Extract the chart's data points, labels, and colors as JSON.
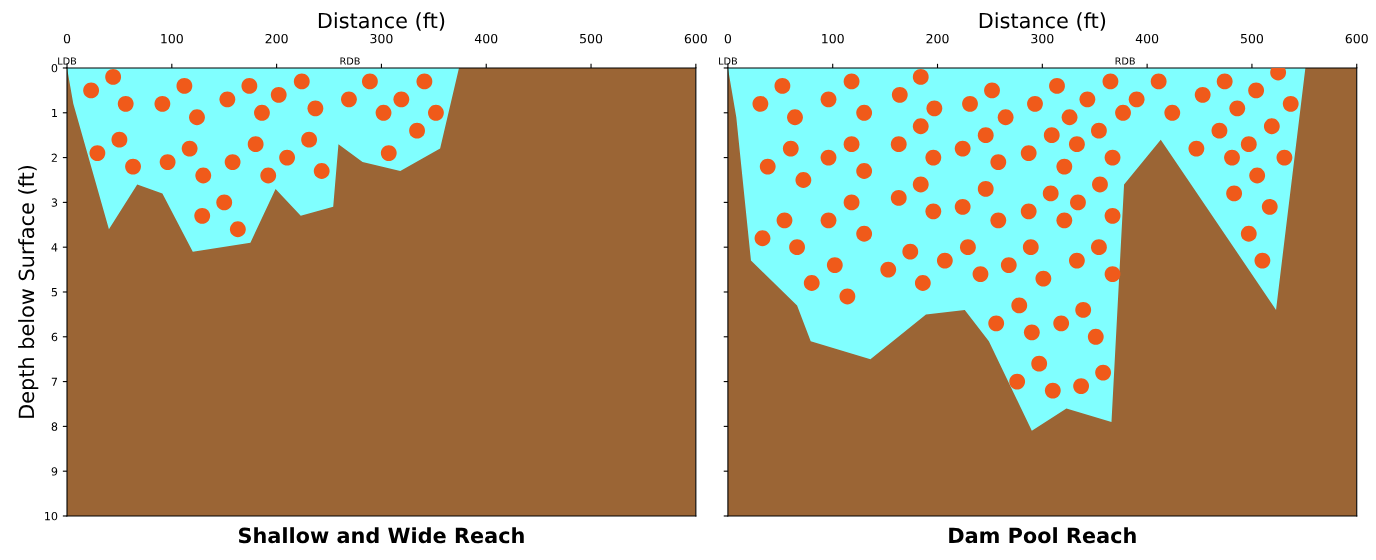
{
  "chart_data": [
    {
      "type": "area",
      "title": "Shallow and Wide Reach",
      "xlabel": "Distance (ft)",
      "ylabel": "Depth below Surface (ft)",
      "xlim": [
        0,
        600
      ],
      "xticks": [
        0,
        100,
        200,
        300,
        400,
        500,
        600
      ],
      "ylim": [
        10,
        0
      ],
      "yticks": [
        0,
        1,
        2,
        3,
        4,
        5,
        6,
        7,
        8,
        9,
        10
      ],
      "grid": false,
      "bands": [
        {
          "axis": "y",
          "from": 0,
          "to": 10,
          "color": "#9b6535"
        }
      ],
      "legend": false,
      "annotations": [
        {
          "text": "LDB",
          "x": 0,
          "y": 0
        },
        {
          "text": "RDB",
          "x": 270,
          "y": 0
        }
      ],
      "series": [
        {
          "color": "#80ffff",
          "x": [
            0,
            6,
            40,
            67,
            91,
            120,
            175,
            199,
            223,
            254,
            259,
            282,
            318,
            356,
            374
          ],
          "values": [
            0,
            0.8,
            3.6,
            2.6,
            2.8,
            4.1,
            3.9,
            2.7,
            3.3,
            3.1,
            1.7,
            2.1,
            2.3,
            1.8,
            0
          ]
        },
        {
          "type": "scatter",
          "color": "#f05a1a",
          "marker": "circle",
          "x": [
            23,
            44,
            56,
            50,
            29,
            63,
            91,
            112,
            124,
            96,
            117,
            130,
            150,
            129,
            163,
            153,
            174,
            186,
            158,
            180,
            192,
            202,
            224,
            237,
            210,
            231,
            243,
            269,
            289,
            302,
            319,
            341,
            352,
            334,
            307
          ],
          "values": [
            0.5,
            0.2,
            0.8,
            1.6,
            1.9,
            2.2,
            0.8,
            0.4,
            1.1,
            2.1,
            1.8,
            2.4,
            3.0,
            3.3,
            3.6,
            0.7,
            0.4,
            1.0,
            2.1,
            1.7,
            2.4,
            0.6,
            0.3,
            0.9,
            2.0,
            1.6,
            2.3,
            0.7,
            0.3,
            1.0,
            0.7,
            0.3,
            1.0,
            1.4,
            1.9
          ]
        }
      ]
    },
    {
      "type": "area",
      "title": "Dam Pool Reach",
      "xlabel": "Distance (ft)",
      "tick_labels": "x",
      "xlim": [
        0,
        600
      ],
      "xticks": [
        0,
        100,
        200,
        300,
        400,
        500,
        600
      ],
      "ylim": [
        10,
        0
      ],
      "yticks": [
        0,
        1,
        2,
        3,
        4,
        5,
        6,
        7,
        8,
        9,
        10
      ],
      "grid": false,
      "bands": [
        {
          "axis": "y",
          "from": 0,
          "to": 10,
          "color": "#9b6535"
        }
      ],
      "legend": false,
      "annotations": [
        {
          "text": "LDB",
          "x": 0,
          "y": 0
        },
        {
          "text": "RDB",
          "x": 379,
          "y": 0
        }
      ],
      "series": [
        {
          "color": "#80ffff",
          "x": [
            0,
            8,
            22,
            66,
            79,
            136,
            189,
            226,
            249,
            290,
            323,
            366,
            378,
            413,
            523,
            551
          ],
          "values": [
            0,
            1.1,
            4.3,
            5.3,
            6.1,
            6.5,
            5.5,
            5.4,
            6.1,
            8.1,
            7.6,
            7.9,
            2.6,
            1.6,
            5.4,
            0
          ]
        },
        {
          "type": "scatter",
          "color": "#f05a1a",
          "marker": "circle",
          "x": [
            31,
            52,
            64,
            60,
            38,
            72,
            54,
            33,
            66,
            80,
            102,
            114,
            96,
            130,
            118,
            130,
            96,
            118,
            130,
            96,
            118,
            164,
            184,
            197,
            184,
            163,
            196,
            184,
            163,
            196,
            174,
            153,
            186,
            207,
            229,
            241,
            224,
            246,
            258,
            224,
            246,
            258,
            231,
            252,
            265,
            293,
            314,
            326,
            309,
            287,
            321,
            333,
            354,
            343,
            365,
            377,
            390,
            411,
            424,
            367,
            355,
            308,
            334,
            287,
            321,
            367,
            354,
            289,
            268,
            301,
            333,
            367,
            278,
            339,
            256,
            290,
            318,
            351,
            297,
            276,
            310,
            337,
            358,
            453,
            474,
            504,
            525,
            486,
            537,
            469,
            447,
            497,
            519,
            481,
            531,
            505,
            483,
            517,
            497,
            510
          ],
          "values": [
            0.8,
            0.4,
            1.1,
            1.8,
            2.2,
            2.5,
            3.4,
            3.8,
            4.0,
            4.8,
            4.4,
            5.1,
            3.4,
            3.7,
            3.0,
            2.3,
            2.0,
            1.7,
            1.0,
            0.7,
            0.3,
            0.6,
            0.2,
            0.9,
            1.3,
            1.7,
            2.0,
            2.6,
            2.9,
            3.2,
            4.1,
            4.5,
            4.8,
            4.3,
            4.0,
            4.6,
            3.1,
            2.7,
            3.4,
            1.8,
            1.5,
            2.1,
            0.8,
            0.5,
            1.1,
            0.8,
            0.4,
            1.1,
            1.5,
            1.9,
            2.2,
            1.7,
            1.4,
            0.7,
            0.3,
            1.0,
            0.7,
            0.3,
            1.0,
            2.0,
            2.6,
            2.8,
            3.0,
            3.2,
            3.4,
            3.3,
            4.0,
            4.0,
            4.4,
            4.7,
            4.3,
            4.6,
            5.3,
            5.4,
            5.7,
            5.9,
            5.7,
            6.0,
            6.6,
            7.0,
            7.2,
            7.1,
            6.8,
            0.6,
            0.3,
            0.5,
            0.1,
            0.9,
            0.8,
            1.4,
            1.8,
            1.7,
            1.3,
            2.0,
            2.0,
            2.4,
            2.8,
            3.1,
            3.7,
            4.3
          ]
        }
      ]
    }
  ]
}
